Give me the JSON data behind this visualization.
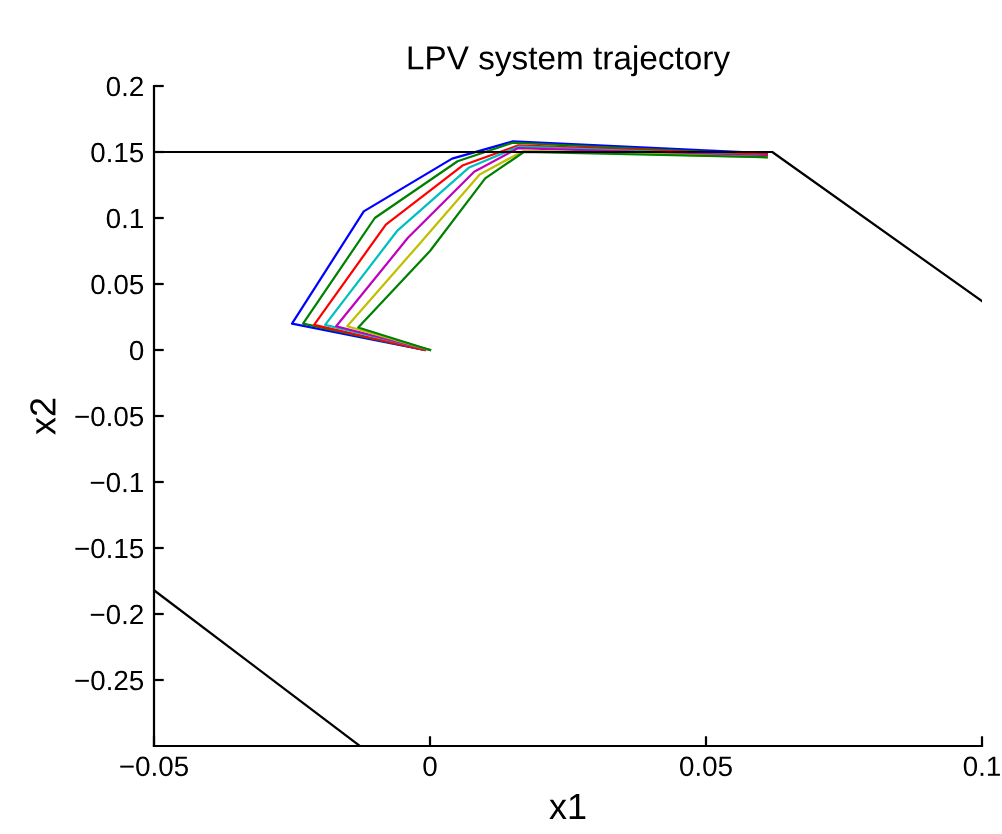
{
  "chart_data": {
    "type": "line",
    "title": "LPV system trajectory",
    "xlabel": "x1",
    "ylabel": "x2",
    "xlim": [
      -0.05,
      0.1
    ],
    "ylim": [
      -0.3,
      0.2
    ],
    "xticks": [
      {
        "value": -0.05,
        "label": "−0.05"
      },
      0,
      0.05,
      0.1
    ],
    "yticks": [
      {
        "value": -0.25,
        "label": "−0.25"
      },
      {
        "value": -0.2,
        "label": "−0.2"
      },
      {
        "value": -0.15,
        "label": "−0.15"
      },
      {
        "value": -0.1,
        "label": "−0.1"
      },
      {
        "value": -0.05,
        "label": "−0.05"
      },
      0,
      0.05,
      0.1,
      0.15,
      0.2
    ],
    "grid": false,
    "legend": false,
    "marker": "none",
    "line_style": "solid",
    "series": [
      {
        "color": "#0000ff",
        "x": [
          -0.001,
          -0.025,
          -0.012,
          0.004,
          0.015,
          0.061
        ],
        "values": [
          0.0,
          0.02,
          0.105,
          0.145,
          0.158,
          0.149
        ]
      },
      {
        "color": "#008000",
        "x": [
          -0.001,
          -0.023,
          -0.01,
          0.005,
          0.015,
          0.061
        ],
        "values": [
          0.0,
          0.02,
          0.1,
          0.143,
          0.157,
          0.148
        ]
      },
      {
        "color": "#ff0000",
        "x": [
          -0.001,
          -0.021,
          -0.008,
          0.006,
          0.016,
          0.061
        ],
        "values": [
          0.0,
          0.019,
          0.095,
          0.14,
          0.155,
          0.148
        ]
      },
      {
        "color": "#00bfbf",
        "x": [
          0.0,
          -0.019,
          -0.006,
          0.007,
          0.016,
          0.061
        ],
        "values": [
          0.0,
          0.019,
          0.09,
          0.138,
          0.154,
          0.147
        ]
      },
      {
        "color": "#bf00bf",
        "x": [
          0.0,
          -0.017,
          -0.004,
          0.008,
          0.016,
          0.061
        ],
        "values": [
          0.0,
          0.018,
          0.085,
          0.135,
          0.153,
          0.147
        ]
      },
      {
        "color": "#bfbf00",
        "x": [
          0.0,
          -0.015,
          -0.002,
          0.009,
          0.017,
          0.061
        ],
        "values": [
          0.0,
          0.018,
          0.08,
          0.133,
          0.151,
          0.146
        ]
      },
      {
        "color": "#008000",
        "x": [
          0.0,
          -0.013,
          0.0,
          0.01,
          0.017,
          0.061
        ],
        "values": [
          0.0,
          0.017,
          0.075,
          0.13,
          0.15,
          0.146
        ]
      },
      {
        "color": "#000000",
        "x": [
          -0.05,
          0.062,
          0.1
        ],
        "values": [
          0.15,
          0.15,
          0.037
        ]
      },
      {
        "color": "#000000",
        "x": [
          -0.05,
          -0.0127
        ],
        "values": [
          -0.182,
          -0.3
        ]
      }
    ]
  }
}
